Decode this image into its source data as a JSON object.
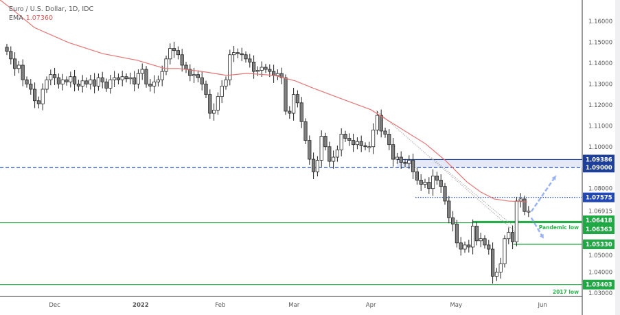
{
  "header": {
    "symbol_title": "Euro / U.S. Dollar, 1D, IDC",
    "ema_label": "EMA",
    "ema_value": "1.07360"
  },
  "colors": {
    "ema": "#e57373",
    "up_body": "#ffffff",
    "down_body": "#808080",
    "wick": "#222222",
    "blue_zone": "#1d3f9a",
    "blue_line": "#2a52c9",
    "green": "#22a745",
    "arrow": "#9bb3f5"
  },
  "chart_data": {
    "type": "candlestick",
    "title": "Euro / U.S. Dollar, 1D, IDC",
    "ylim": [
      1.025,
      1.166
    ],
    "yticks": [
      "1.16000",
      "1.15000",
      "1.14000",
      "1.13000",
      "1.12000",
      "1.11000",
      "1.10000",
      "1.08000",
      "1.05000",
      "1.04000",
      "1.03000"
    ],
    "xticks": [
      {
        "label": "Dec",
        "index": 12
      },
      {
        "label": "2022",
        "index": 33.6,
        "bold": true
      },
      {
        "label": "Feb",
        "index": 53.6
      },
      {
        "label": "Mar",
        "index": 72.1
      },
      {
        "label": "Apr",
        "index": 91.4
      },
      {
        "label": "May",
        "index": 112.8
      },
      {
        "label": "Jun",
        "index": 134.5
      }
    ],
    "closes": [
      1.1456,
      1.142,
      1.1374,
      1.139,
      1.132,
      1.13,
      1.1275,
      1.122,
      1.1205,
      1.1275,
      1.132,
      1.1345,
      1.133,
      1.13,
      1.132,
      1.131,
      1.1335,
      1.13,
      1.129,
      1.1315,
      1.13,
      1.132,
      1.129,
      1.133,
      1.131,
      1.128,
      1.132,
      1.133,
      1.132,
      1.1335,
      1.1325,
      1.133,
      1.13,
      1.135,
      1.137,
      1.13,
      1.129,
      1.131,
      1.132,
      1.136,
      1.142,
      1.147,
      1.146,
      1.144,
      1.139,
      1.137,
      1.134,
      1.1345,
      1.133,
      1.13,
      1.125,
      1.116,
      1.1175,
      1.124,
      1.129,
      1.132,
      1.144,
      1.145,
      1.1445,
      1.144,
      1.142,
      1.1405,
      1.136,
      1.1365,
      1.138,
      1.137,
      1.136,
      1.134,
      1.135,
      1.133,
      1.117,
      1.116,
      1.125,
      1.121,
      1.112,
      1.103,
      1.094,
      1.088,
      1.0935,
      1.105,
      1.1,
      1.093,
      1.095,
      1.0985,
      1.106,
      1.104,
      1.103,
      1.101,
      1.1025,
      1.1005,
      1.1,
      1.1,
      1.108,
      1.115,
      1.1075,
      1.106,
      1.101,
      1.094,
      1.095,
      1.0925,
      1.092,
      1.0935,
      1.088,
      1.084,
      1.082,
      1.083,
      1.08,
      1.086,
      1.084,
      1.081,
      1.074,
      1.066,
      1.063,
      1.054,
      1.051,
      1.053,
      1.052,
      1.062,
      1.055,
      1.056,
      1.053,
      1.051,
      1.038,
      1.04,
      1.044,
      1.056,
      1.059,
      1.0545,
      1.074,
      1.075,
      1.069,
      1.0692
    ],
    "ema_series": [
      [
        -1.7,
        1.1702
      ],
      [
        1.7,
        1.1652
      ],
      [
        6.9,
        1.157
      ],
      [
        15.5,
        1.1498
      ],
      [
        24.1,
        1.1445
      ],
      [
        32.8,
        1.1413
      ],
      [
        39.7,
        1.1374
      ],
      [
        43.1,
        1.1374
      ],
      [
        50,
        1.1357
      ],
      [
        55.2,
        1.1341
      ],
      [
        60.3,
        1.1351
      ],
      [
        67.2,
        1.1341
      ],
      [
        72.4,
        1.1315
      ],
      [
        77.6,
        1.1275
      ],
      [
        84.5,
        1.1226
      ],
      [
        91.4,
        1.1177
      ],
      [
        98.3,
        1.1095
      ],
      [
        105.2,
        1.1013
      ],
      [
        110.3,
        1.0931
      ],
      [
        115.5,
        1.0832
      ],
      [
        119,
        1.0783
      ],
      [
        122.4,
        1.075
      ],
      [
        125.9,
        1.074
      ],
      [
        130.7,
        1.0736
      ]
    ],
    "levels": [
      {
        "name": "resistance-zone-top",
        "price": 1.09386,
        "label": "1.09386",
        "color": "#1d3f9a",
        "style": "solid",
        "from_index": 97.9
      },
      {
        "name": "resistance-1-09",
        "price": 1.09,
        "label": "1.09000",
        "color": "#2a52c9",
        "style": "dashed",
        "from_index": -2
      },
      {
        "name": "level-1-07575",
        "price": 1.07575,
        "label": "1.07575",
        "color": "#2a52c9",
        "style": "dotted",
        "from_index": 102.6
      },
      {
        "name": "pandemic-low-upper",
        "price": 1.06418,
        "label": "1.06418",
        "color": "#22a745",
        "style": "solid",
        "from_index": 116.9
      },
      {
        "name": "pandemic-low",
        "price": 1.06363,
        "label": "1.06363",
        "color": "#22a745",
        "style": "solid",
        "from_index": -2
      },
      {
        "name": "support-1-0533",
        "price": 1.0533,
        "label": "1.05330",
        "color": "#22a745",
        "style": "solid",
        "from_index": 127.2
      },
      {
        "name": "low-2017",
        "price": 1.03403,
        "label": "1.03403",
        "color": "#22a745",
        "style": "solid",
        "from_index": -2
      }
    ],
    "current_price": "1.06915",
    "annotations": {
      "pandemic_low": "Pandemic low",
      "low_2017": "2017 low"
    },
    "trendlines": [
      [
        [
          92.8,
          1.1173
        ],
        [
          128.4,
          1.058
        ]
      ],
      [
        [
          106.6,
          1.0948
        ],
        [
          127.2,
          1.062
        ]
      ]
    ],
    "arrows": [
      [
        [
          131.7,
          1.069
        ],
        [
          137.9,
          1.0862
        ]
      ],
      [
        [
          131.7,
          1.066
        ],
        [
          134.8,
          1.056
        ]
      ]
    ]
  }
}
